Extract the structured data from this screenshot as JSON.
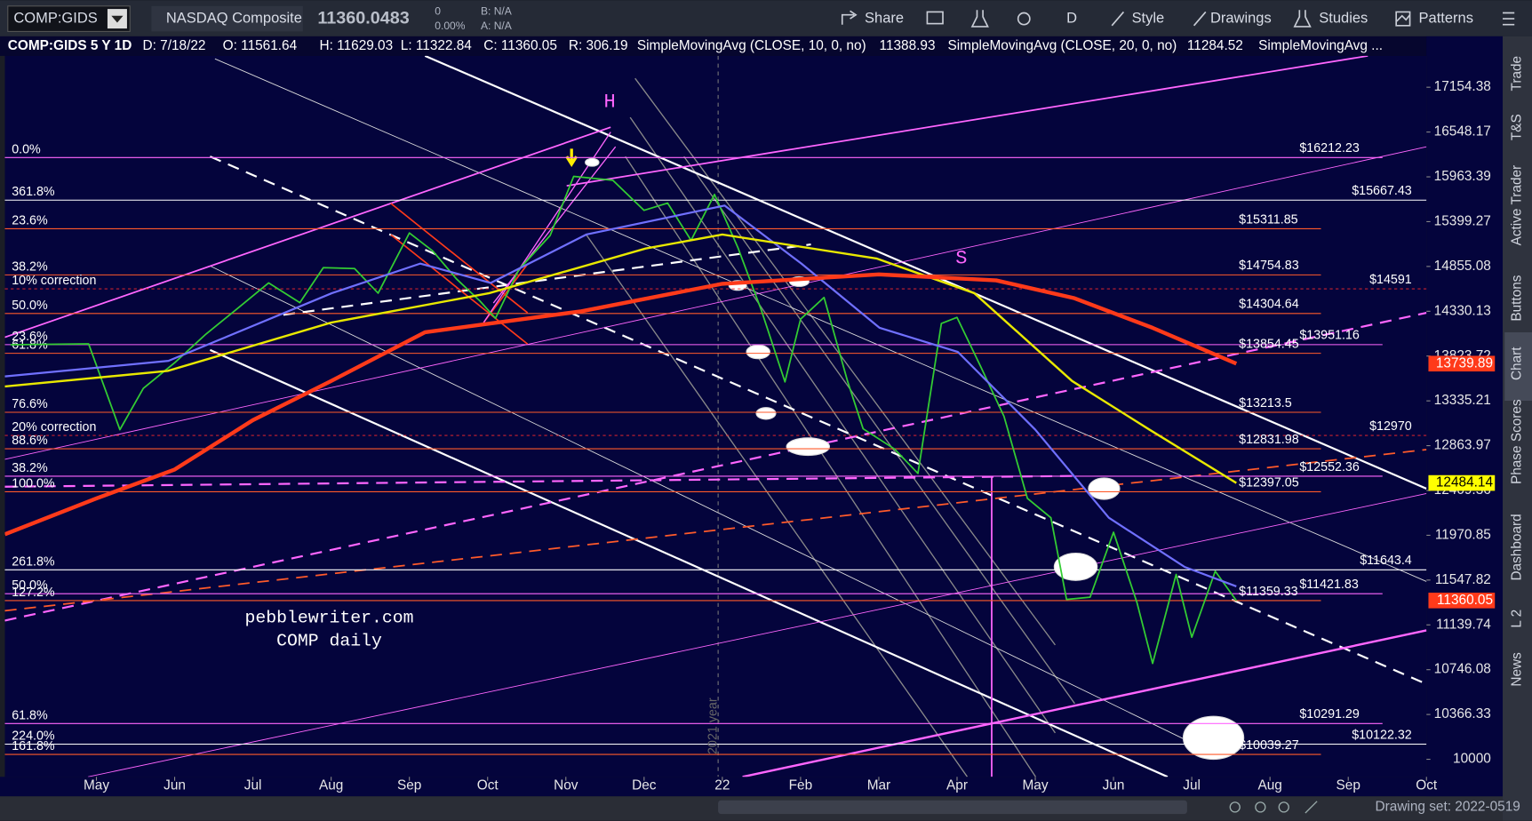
{
  "toolbar": {
    "symbol": "COMP:GIDS",
    "name": "NASDAQ Composite",
    "price": "11360.0483",
    "change": "0",
    "change_pct": "0.00%",
    "bid": "B: N/A",
    "ask": "A: N/A",
    "buttons": [
      "Share",
      "D",
      "Style",
      "Drawings",
      "Studies",
      "Patterns"
    ]
  },
  "header": {
    "symbol": "COMP:GIDS 5 Y 1D",
    "date": "D: 7/18/22",
    "open": "O: 11561.64",
    "high": "H: 11629.03",
    "low": "L: 11322.84",
    "close": "C: 11360.05",
    "range": "R: 306.19",
    "studies": [
      {
        "name": "SimpleMovingAvg (CLOSE, 10, 0, no)",
        "value": "11388.93",
        "color": "#ff3333"
      },
      {
        "name": "SimpleMovingAvg (CLOSE, 20, 0, no)",
        "value": "11284.52",
        "color": "#ffffff"
      },
      {
        "name": "SimpleMovingAvg ...",
        "color": "#8080ff"
      }
    ]
  },
  "side_tabs": [
    "Trade",
    "T&S",
    "Active Trader",
    "Buttons",
    "Chart",
    "Phase Scores",
    "Dashboard",
    "L 2",
    "News"
  ],
  "chart_data": {
    "type": "line",
    "log_scale": true,
    "xlim": [
      -1.17,
      17.0
    ],
    "xticks": [
      {
        "value": 0,
        "label": "May"
      },
      {
        "value": 1,
        "label": "Jun"
      },
      {
        "value": 2,
        "label": "Jul"
      },
      {
        "value": 3,
        "label": "Aug"
      },
      {
        "value": 4,
        "label": "Sep"
      },
      {
        "value": 5,
        "label": "Oct"
      },
      {
        "value": 6,
        "label": "Nov"
      },
      {
        "value": 7,
        "label": "Dec"
      },
      {
        "value": 8,
        "label": "22"
      },
      {
        "value": 9,
        "label": "Feb"
      },
      {
        "value": 10,
        "label": "Mar"
      },
      {
        "value": 11,
        "label": "Apr"
      },
      {
        "value": 12,
        "label": "May"
      },
      {
        "value": 13,
        "label": "Jun"
      },
      {
        "value": 14,
        "label": "Jul"
      },
      {
        "value": 15,
        "label": "Aug"
      },
      {
        "value": 16,
        "label": "Sep"
      },
      {
        "value": 17,
        "label": "Oct"
      }
    ],
    "ylim": [
      9860,
      17870
    ],
    "yticks": [
      17154.38,
      16548.17,
      15963.39,
      15399.27,
      14855.08,
      14330.13,
      13823.72,
      13335.21,
      12863.97,
      12409.36,
      11970.85,
      11547.82,
      11139.74,
      10746.08,
      10366.33,
      10000
    ],
    "series": [
      {
        "color": "#33cc33",
        "x": [
          -1.1,
          -0.1,
          0.3,
          0.6,
          1.0,
          1.4,
          1.8,
          2.2,
          2.6,
          2.9,
          3.3,
          3.6,
          4.0,
          4.3,
          4.6,
          4.9,
          5.1,
          5.4,
          5.8,
          6.1,
          6.6,
          7.0,
          7.3,
          7.6,
          7.9,
          8.2,
          8.5,
          8.8,
          9.0,
          9.3,
          9.6,
          9.8,
          10.2,
          10.5,
          10.8,
          11.0,
          11.3,
          11.6,
          11.9,
          12.2,
          12.4,
          12.7,
          13.0,
          13.3,
          13.5,
          13.8,
          14.0,
          14.3,
          14.57
        ],
        "values": [
          13950,
          13960,
          13030,
          13470,
          13750,
          14070,
          14360,
          14660,
          14430,
          14840,
          14830,
          14540,
          15260,
          15040,
          14710,
          14450,
          14250,
          14820,
          15230,
          15970,
          15920,
          15540,
          15630,
          15170,
          15740,
          15080,
          14340,
          13540,
          14240,
          14490,
          13550,
          13040,
          12830,
          12580,
          14190,
          14260,
          13710,
          13170,
          12330,
          12140,
          11370,
          11390,
          12000,
          11340,
          10800,
          11600,
          11030,
          11630,
          11360.05
        ]
      },
      {
        "color": "#7070ff",
        "x": [
          -1.17,
          0.92,
          3.01,
          4.14,
          5.04,
          6.26,
          8.03,
          9.01,
          10.01,
          11.01,
          12.0,
          12.94,
          13.91,
          14.57
        ],
        "values": [
          13600,
          13770,
          14540,
          14890,
          14660,
          15240,
          15600,
          14890,
          14140,
          13870,
          13030,
          12140,
          11670,
          11490
        ]
      },
      {
        "color": "#e8e800",
        "x": [
          -1.17,
          0.91,
          3.0,
          5.02,
          7.02,
          8.0,
          9.97,
          11.22,
          12.47,
          13.46,
          14.57
        ],
        "values": [
          13490,
          13660,
          14200,
          14540,
          15070,
          15240,
          14950,
          14540,
          13550,
          13030,
          12484.14
        ]
      },
      {
        "color": "#ff3a1a",
        "x": [
          -1.17,
          0,
          1,
          2,
          3,
          4.2,
          6.2,
          8,
          10,
          11.5,
          12.5,
          13.5,
          14.57
        ],
        "values": [
          11980,
          12330,
          12620,
          13130,
          13550,
          14090,
          14330,
          14650,
          14760,
          14690,
          14480,
          14140,
          13739.89
        ]
      }
    ],
    "markers": [
      {
        "value": 13739.89,
        "color": "#ff3a1a"
      },
      {
        "value": 12484.14,
        "color": "#ffff00"
      },
      {
        "value": 11360.05,
        "color": "#ff3a1a"
      }
    ],
    "levels": [
      {
        "value": 16212.23,
        "color": "#ff66ff",
        "fib": "0.0%",
        "label": "$16212.23"
      },
      {
        "value": 15667.43,
        "color": "#ffffff",
        "fib": "361.8%",
        "label": "$15667.43"
      },
      {
        "value": 15311.85,
        "color": "#ff5a2a",
        "fib": "23.6%",
        "label": "$15311.85"
      },
      {
        "value": 14754.83,
        "color": "#ff5a2a",
        "fib": "38.2%",
        "label": "$14754.83"
      },
      {
        "value": 14591,
        "color": "#ff2a2a",
        "fib": "10% correction",
        "label": "$14591"
      },
      {
        "value": 14304.64,
        "color": "#ff5a2a",
        "fib": "50.0%",
        "label": "$14304.64"
      },
      {
        "value": 13951.16,
        "color": "#ff66ff",
        "fib": "23.6%",
        "label": "$13951.16"
      },
      {
        "value": 13854.45,
        "color": "#ff5a2a",
        "fib": "61.8%",
        "label": "$13854.45"
      },
      {
        "value": 13213.5,
        "color": "#ff5a2a",
        "fib": "76.6%",
        "label": "$13213.5"
      },
      {
        "value": 12970,
        "color": "#ff2a2a",
        "fib": "20% correction",
        "label": "$12970"
      },
      {
        "value": 12831.98,
        "color": "#ff5a2a",
        "fib": "88.6%",
        "label": "$12831.98"
      },
      {
        "value": 12552.36,
        "color": "#ff66ff",
        "fib": "38.2%",
        "label": "$12552.36"
      },
      {
        "value": 12397.05,
        "color": "#ff5a2a",
        "fib": "100.0%",
        "label": "$12397.05"
      },
      {
        "value": 11643.4,
        "color": "#ffffff",
        "fib": "261.8%",
        "label": "$11643.4"
      },
      {
        "value": 11421.83,
        "color": "#ff66ff",
        "fib": "50.0%",
        "label": "$11421.83"
      },
      {
        "value": 11359.33,
        "color": "#ff5a2a",
        "fib": "127.2%",
        "label": "$11359.33"
      },
      {
        "value": 10291.29,
        "color": "#ff66ff",
        "fib": "61.8%",
        "label": "$10291.29"
      },
      {
        "value": 10122.32,
        "color": "#ffffff",
        "fib": "224.0%",
        "label": "$10122.32"
      },
      {
        "value": 10039.27,
        "color": "#ff5a2a",
        "fib": "161.8%",
        "label": "$10039.27"
      }
    ],
    "annotations": [
      "H",
      "S",
      "pebblewriter.com",
      "COMP daily",
      "2021 year"
    ]
  },
  "footer": {
    "drawing_set": "Drawing set: 2022-0519"
  }
}
